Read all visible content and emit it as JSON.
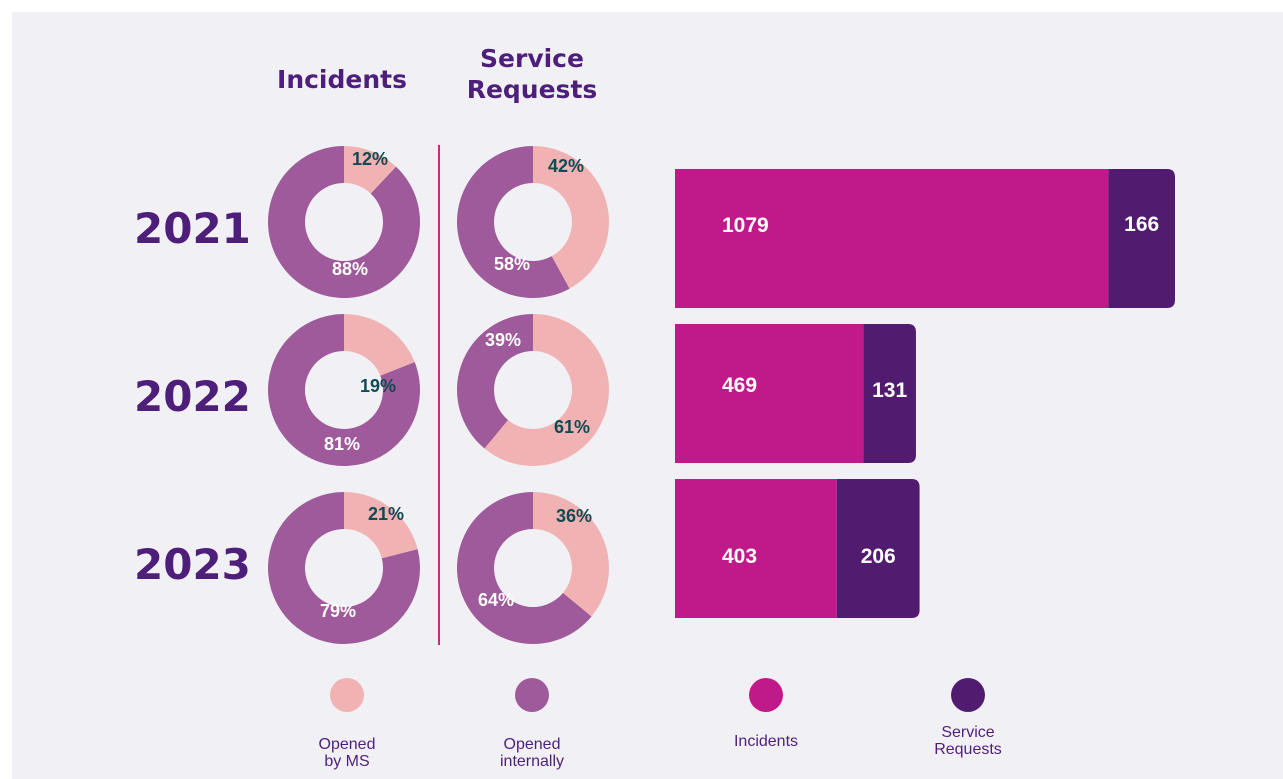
{
  "titles": {
    "incidents": "Incidents",
    "service_requests": "Service Requests"
  },
  "years": [
    "2021",
    "2022",
    "2023"
  ],
  "colors": {
    "opened_by_ms": "#f1b2b3",
    "opened_internally": "#9e5a9b",
    "incidents_bar": "#c0198a",
    "service_requests_bar": "#511b70",
    "dark_label": "#0f4a52",
    "light_label": "#ffffff"
  },
  "legend": [
    {
      "label": "Opened by MS",
      "color": "#f1b2b3"
    },
    {
      "label": "Opened internally",
      "color": "#9e5a9b"
    },
    {
      "label": "Incidents",
      "color": "#c0198a"
    },
    {
      "label": "Service Requests",
      "color": "#511b70"
    }
  ],
  "chart_data": [
    {
      "type": "pie",
      "title": "Incidents",
      "categories": [
        "Opened by MS",
        "Opened internally"
      ],
      "series": [
        {
          "name": "2021",
          "values": [
            12,
            88
          ],
          "labels": [
            "12%",
            "88%"
          ]
        },
        {
          "name": "2022",
          "values": [
            19,
            81
          ],
          "labels": [
            "19%",
            "81%"
          ]
        },
        {
          "name": "2023",
          "values": [
            21,
            79
          ],
          "labels": [
            "21%",
            "79%"
          ]
        }
      ]
    },
    {
      "type": "pie",
      "title": "Service Requests",
      "categories": [
        "Opened by MS",
        "Opened internally"
      ],
      "series": [
        {
          "name": "2021",
          "values": [
            42,
            58
          ],
          "labels": [
            "42%",
            "58%"
          ]
        },
        {
          "name": "2022",
          "values": [
            61,
            39
          ],
          "labels": [
            "61%",
            "39%"
          ]
        },
        {
          "name": "2023",
          "values": [
            36,
            64
          ],
          "labels": [
            "36%",
            "64%"
          ]
        }
      ]
    },
    {
      "type": "bar",
      "orientation": "horizontal",
      "stacked": true,
      "categories": [
        "2021",
        "2022",
        "2023"
      ],
      "series": [
        {
          "name": "Incidents",
          "values": [
            1079,
            469,
            403
          ]
        },
        {
          "name": "Service Requests",
          "values": [
            166,
            131,
            206
          ]
        }
      ]
    }
  ]
}
